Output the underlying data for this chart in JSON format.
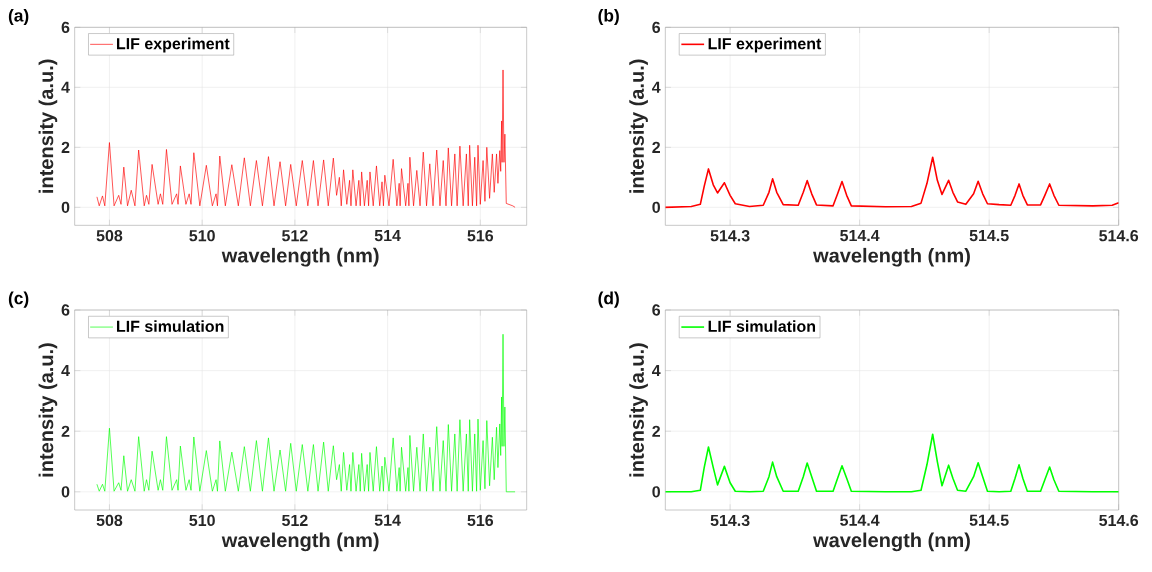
{
  "chart_data": [
    {
      "type": "line",
      "xlabel": "wavelength (nm)",
      "ylabel": "intensity (a.u.)",
      "annotations": [
        "(a)"
      ],
      "xlim": [
        507.25,
        517
      ],
      "ylim": [
        -0.6,
        6
      ],
      "xticks": [
        508,
        510,
        512,
        514,
        516
      ],
      "yticks": [
        0,
        2,
        4,
        6
      ],
      "grid": true,
      "legend": "top left",
      "x": [
        507.73,
        507.78,
        507.85,
        507.9,
        508.0,
        508.1,
        508.2,
        508.25,
        508.31,
        508.39,
        508.47,
        508.55,
        508.63,
        508.75,
        508.8,
        508.85,
        508.92,
        509.05,
        509.1,
        509.15,
        509.23,
        509.35,
        509.45,
        509.48,
        509.53,
        509.65,
        509.72,
        509.76,
        509.82,
        509.95,
        510.09,
        510.22,
        510.3,
        510.33,
        510.38,
        510.5,
        510.64,
        510.78,
        510.91,
        511.04,
        511.17,
        511.3,
        511.43,
        511.55,
        511.68,
        511.8,
        511.91,
        512.03,
        512.16,
        512.28,
        512.4,
        512.5,
        512.62,
        512.72,
        512.83,
        512.9,
        512.96,
        513.0,
        513.05,
        513.12,
        513.18,
        513.21,
        513.25,
        513.32,
        513.38,
        513.41,
        513.44,
        513.5,
        513.56,
        513.59,
        513.62,
        513.69,
        513.76,
        513.83,
        513.88,
        513.91,
        513.94,
        514.03,
        514.12,
        514.2,
        514.25,
        514.27,
        514.3,
        514.39,
        514.44,
        514.46,
        514.48,
        514.56,
        514.63,
        514.7,
        514.77,
        514.84,
        514.91,
        514.98,
        515.06,
        515.13,
        515.2,
        515.26,
        515.31,
        515.38,
        515.45,
        515.5,
        515.56,
        515.63,
        515.7,
        515.74,
        515.77,
        515.83,
        515.88,
        515.92,
        515.95,
        516.0,
        516.06,
        516.1,
        516.14,
        516.2,
        516.26,
        516.3,
        516.35,
        516.38,
        516.42,
        516.44,
        516.46,
        516.47,
        516.49,
        516.51,
        516.53,
        516.56,
        516.7,
        516.75
      ],
      "series": [
        {
          "name": "LIF experiment",
          "color": "#ff0000",
          "values": [
            0.35,
            0.05,
            0.38,
            0.05,
            2.16,
            0.05,
            0.4,
            0.1,
            1.34,
            0.05,
            0.57,
            0.05,
            1.91,
            0.05,
            0.4,
            0.1,
            1.43,
            0.1,
            0.45,
            0.1,
            1.93,
            0.1,
            0.45,
            0.1,
            1.38,
            0.1,
            0.45,
            0.1,
            1.82,
            0.05,
            1.4,
            0.05,
            0.45,
            0.05,
            1.71,
            0.05,
            1.42,
            0.05,
            1.65,
            0.05,
            1.56,
            0.05,
            1.69,
            0.05,
            1.52,
            0.05,
            1.43,
            0.05,
            1.56,
            0.05,
            1.56,
            0.05,
            1.58,
            0.05,
            1.64,
            0.4,
            1.0,
            0.05,
            1.25,
            0.1,
            0.9,
            0.05,
            1.25,
            0.05,
            0.9,
            0.05,
            1.18,
            0.05,
            0.9,
            0.05,
            1.18,
            0.05,
            1.38,
            0.05,
            0.85,
            0.05,
            1.07,
            0.05,
            1.6,
            0.05,
            0.8,
            0.05,
            1.29,
            0.05,
            0.8,
            0.05,
            1.67,
            0.05,
            1.23,
            0.05,
            1.84,
            0.05,
            1.45,
            0.05,
            1.91,
            0.05,
            1.56,
            0.05,
            1.98,
            0.05,
            1.78,
            0.05,
            2.04,
            0.05,
            1.78,
            0.05,
            2.07,
            0.05,
            1.67,
            0.05,
            2.07,
            0.1,
            1.56,
            0.2,
            2.0,
            0.3,
            1.78,
            0.5,
            1.78,
            0.8,
            1.89,
            1.2,
            2.88,
            1.5,
            4.58,
            1.5,
            2.44,
            0.13,
            0.05,
            0.0
          ]
        }
      ]
    },
    {
      "type": "line",
      "xlabel": "wavelength (nm)",
      "ylabel": "intensity (a.u.)",
      "annotations": [
        "(b)"
      ],
      "xlim": [
        514.25,
        514.6
      ],
      "ylim": [
        -0.6,
        6
      ],
      "xticks": [
        514.3,
        514.4,
        514.5,
        514.6
      ],
      "yticks": [
        0,
        2,
        4,
        6
      ],
      "grid": true,
      "legend": "top left",
      "x": [
        514.25,
        514.27,
        514.277,
        514.28,
        514.2833,
        514.287,
        514.2903,
        514.2956,
        514.3,
        514.304,
        514.315,
        514.3256,
        514.33,
        514.3328,
        514.336,
        514.341,
        514.3526,
        514.3565,
        514.3595,
        514.363,
        514.3667,
        514.3795,
        514.383,
        514.3864,
        514.39,
        514.3936,
        514.42,
        514.44,
        514.4474,
        514.452,
        514.4564,
        514.46,
        514.4636,
        514.4687,
        514.472,
        514.4756,
        514.482,
        514.488,
        514.4915,
        514.495,
        514.4987,
        514.5077,
        514.5167,
        514.52,
        514.5231,
        514.526,
        514.5295,
        514.5397,
        514.543,
        514.5467,
        514.55,
        514.5538,
        514.58,
        514.595,
        514.6
      ],
      "series": [
        {
          "name": "LIF experiment",
          "color": "#ff0000",
          "values": [
            0.0,
            0.03,
            0.1,
            0.7,
            1.28,
            0.75,
            0.48,
            0.82,
            0.4,
            0.12,
            0.03,
            0.07,
            0.5,
            0.95,
            0.5,
            0.09,
            0.07,
            0.5,
            0.89,
            0.45,
            0.08,
            0.05,
            0.45,
            0.86,
            0.4,
            0.05,
            0.02,
            0.03,
            0.14,
            0.8,
            1.67,
            0.9,
            0.43,
            0.9,
            0.5,
            0.18,
            0.1,
            0.45,
            0.87,
            0.45,
            0.12,
            0.09,
            0.07,
            0.4,
            0.78,
            0.4,
            0.08,
            0.08,
            0.4,
            0.78,
            0.4,
            0.07,
            0.05,
            0.07,
            0.15
          ]
        }
      ]
    },
    {
      "type": "line",
      "xlabel": "wavelength (nm)",
      "ylabel": "intensity (a.u.)",
      "annotations": [
        "(c)"
      ],
      "xlim": [
        507.25,
        517
      ],
      "ylim": [
        -0.6,
        6
      ],
      "xticks": [
        508,
        510,
        512,
        514,
        516
      ],
      "yticks": [
        0,
        2,
        4,
        6
      ],
      "grid": true,
      "legend": "top left",
      "x": [
        507.73,
        507.78,
        507.85,
        507.9,
        508.0,
        508.1,
        508.2,
        508.25,
        508.31,
        508.39,
        508.47,
        508.55,
        508.63,
        508.75,
        508.8,
        508.85,
        508.92,
        509.05,
        509.1,
        509.15,
        509.23,
        509.35,
        509.45,
        509.48,
        509.53,
        509.65,
        509.72,
        509.76,
        509.82,
        509.95,
        510.09,
        510.22,
        510.3,
        510.33,
        510.38,
        510.5,
        510.64,
        510.78,
        510.91,
        511.04,
        511.17,
        511.3,
        511.43,
        511.55,
        511.68,
        511.8,
        511.91,
        512.03,
        512.16,
        512.28,
        512.4,
        512.5,
        512.62,
        512.72,
        512.83,
        512.9,
        512.96,
        513.0,
        513.05,
        513.12,
        513.18,
        513.21,
        513.25,
        513.32,
        513.38,
        513.41,
        513.44,
        513.5,
        513.56,
        513.59,
        513.62,
        513.69,
        513.76,
        513.83,
        513.88,
        513.91,
        513.94,
        514.03,
        514.12,
        514.2,
        514.25,
        514.27,
        514.3,
        514.39,
        514.44,
        514.46,
        514.48,
        514.56,
        514.63,
        514.7,
        514.77,
        514.84,
        514.91,
        514.98,
        515.06,
        515.13,
        515.2,
        515.26,
        515.31,
        515.38,
        515.45,
        515.5,
        515.56,
        515.63,
        515.7,
        515.74,
        515.77,
        515.83,
        515.88,
        515.92,
        515.95,
        516.0,
        516.06,
        516.1,
        516.14,
        516.2,
        516.26,
        516.3,
        516.35,
        516.38,
        516.42,
        516.44,
        516.46,
        516.47,
        516.49,
        516.51,
        516.53,
        516.56,
        516.7,
        516.75
      ],
      "series": [
        {
          "name": "LIF simulation",
          "color": "#00ff00",
          "values": [
            0.25,
            0.02,
            0.25,
            0.02,
            2.1,
            0.02,
            0.3,
            0.05,
            1.19,
            0.02,
            0.4,
            0.02,
            1.82,
            0.02,
            0.4,
            0.05,
            1.34,
            0.05,
            0.4,
            0.05,
            1.82,
            0.05,
            0.4,
            0.05,
            1.51,
            0.05,
            0.4,
            0.05,
            1.81,
            0.02,
            1.36,
            0.02,
            0.4,
            0.02,
            1.68,
            0.02,
            1.31,
            0.02,
            1.49,
            0.02,
            1.69,
            0.02,
            1.78,
            0.02,
            1.38,
            0.02,
            1.6,
            0.02,
            1.56,
            0.02,
            1.56,
            0.02,
            1.64,
            0.02,
            1.52,
            0.4,
            0.9,
            0.02,
            1.3,
            0.05,
            0.9,
            0.02,
            1.3,
            0.02,
            0.9,
            0.02,
            1.27,
            0.02,
            0.9,
            0.02,
            1.3,
            0.02,
            1.49,
            0.02,
            0.85,
            0.02,
            1.14,
            0.02,
            1.78,
            0.02,
            0.8,
            0.02,
            1.47,
            0.02,
            0.8,
            0.02,
            1.86,
            0.02,
            1.47,
            0.02,
            1.91,
            0.02,
            1.47,
            0.02,
            2.15,
            0.02,
            1.69,
            0.02,
            2.22,
            0.02,
            1.91,
            0.02,
            2.38,
            0.02,
            1.91,
            0.02,
            2.38,
            0.02,
            1.91,
            0.02,
            2.4,
            0.05,
            1.69,
            0.1,
            2.35,
            0.2,
            1.8,
            0.4,
            2.13,
            0.8,
            2.24,
            1.2,
            3.13,
            1.5,
            5.2,
            1.5,
            2.8,
            0.0,
            0.0,
            0.0
          ]
        }
      ]
    },
    {
      "type": "line",
      "xlabel": "wavelength (nm)",
      "ylabel": "intensity (a.u.)",
      "annotations": [
        "(d)"
      ],
      "xlim": [
        514.25,
        514.6
      ],
      "ylim": [
        -0.6,
        6
      ],
      "xticks": [
        514.3,
        514.4,
        514.5,
        514.6
      ],
      "yticks": [
        0,
        2,
        4,
        6
      ],
      "grid": true,
      "legend": "top left",
      "x": [
        514.25,
        514.27,
        514.277,
        514.28,
        514.2833,
        514.287,
        514.2903,
        514.2956,
        514.3,
        514.304,
        514.315,
        514.3256,
        514.33,
        514.3328,
        514.336,
        514.341,
        514.3526,
        514.3565,
        514.3595,
        514.363,
        514.3667,
        514.3795,
        514.383,
        514.3864,
        514.39,
        514.3936,
        514.42,
        514.44,
        514.4474,
        514.452,
        514.4564,
        514.46,
        514.4636,
        514.4687,
        514.472,
        514.4756,
        514.482,
        514.488,
        514.4915,
        514.495,
        514.4987,
        514.5077,
        514.5167,
        514.52,
        514.5231,
        514.526,
        514.5295,
        514.5397,
        514.543,
        514.5467,
        514.55,
        514.5538,
        514.58,
        514.595,
        514.6
      ],
      "series": [
        {
          "name": "LIF simulation",
          "color": "#00ff00",
          "values": [
            0.0,
            0.0,
            0.05,
            0.8,
            1.48,
            0.8,
            0.23,
            0.84,
            0.3,
            0.02,
            0.0,
            0.02,
            0.5,
            0.98,
            0.5,
            0.02,
            0.02,
            0.5,
            0.95,
            0.5,
            0.02,
            0.02,
            0.45,
            0.86,
            0.45,
            0.02,
            0.0,
            0.0,
            0.05,
            0.9,
            1.9,
            1.0,
            0.2,
            0.88,
            0.45,
            0.05,
            0.02,
            0.5,
            0.96,
            0.5,
            0.02,
            0.0,
            0.02,
            0.45,
            0.89,
            0.45,
            0.02,
            0.02,
            0.4,
            0.82,
            0.4,
            0.02,
            0.0,
            0.0,
            0.0
          ]
        }
      ]
    }
  ]
}
